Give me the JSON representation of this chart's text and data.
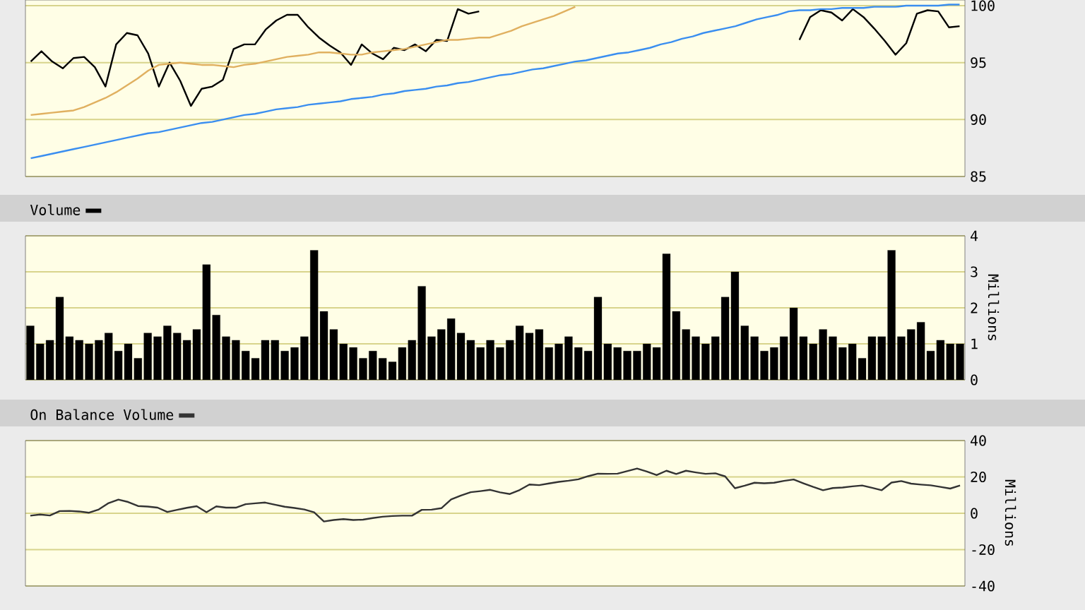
{
  "chart_data": [
    {
      "type": "line",
      "categories": [
        null,
        null,
        null,
        null,
        null,
        null,
        null,
        null,
        null,
        null,
        null,
        null,
        null,
        null,
        null,
        null,
        null,
        null,
        null,
        null,
        null,
        null,
        null,
        null,
        null,
        null,
        null,
        null,
        null,
        null,
        null,
        null,
        null,
        null,
        null,
        null,
        null,
        null,
        null,
        null,
        null,
        null,
        null,
        null,
        null,
        null,
        null,
        null,
        null,
        null,
        null,
        null,
        null,
        null,
        null,
        null,
        null,
        null,
        null,
        null,
        null,
        null,
        null,
        null,
        null,
        null,
        null,
        null,
        null,
        null,
        null,
        null,
        null,
        null,
        null,
        null,
        null,
        null,
        null,
        null,
        null,
        null,
        null,
        null,
        null,
        null,
        null,
        null
      ],
      "ylim": [
        85,
        100.5
      ],
      "yticks": [
        85,
        90,
        95,
        100
      ],
      "grid": "y",
      "tick_labels": "y",
      "series": [
        {
          "color": "#000000",
          "values": [
            95.1,
            96.0,
            95.1,
            94.5,
            95.4,
            95.5,
            94.6,
            92.9,
            96.6,
            97.6,
            97.4,
            95.8,
            92.9,
            95.0,
            93.4,
            91.2,
            92.7,
            92.9,
            93.5,
            96.2,
            96.6,
            96.6,
            97.9,
            98.7,
            99.2,
            99.2,
            98.1,
            97.2,
            96.5,
            95.9,
            94.8,
            96.6,
            95.8,
            95.3,
            96.3,
            96.1,
            96.6,
            96.0,
            97.0,
            96.9,
            99.7,
            99.3,
            99.5,
            null,
            null,
            null,
            null,
            null,
            null,
            null,
            null,
            null,
            null,
            null,
            null,
            null,
            null,
            null,
            null,
            null,
            null,
            null,
            null,
            null,
            null,
            null,
            null,
            null,
            null,
            null,
            null,
            null,
            97.0,
            99.0,
            99.6,
            99.4,
            98.7,
            99.7,
            99.0,
            98.0,
            96.9,
            95.7,
            96.7,
            99.3,
            99.6,
            99.5,
            98.1,
            98.2
          ]
        },
        {
          "color": "#e0b060",
          "values": [
            90.4,
            90.5,
            90.6,
            90.7,
            90.8,
            91.1,
            91.5,
            91.9,
            92.4,
            93.0,
            93.6,
            94.3,
            94.8,
            94.9,
            95.0,
            94.9,
            94.8,
            94.8,
            94.7,
            94.6,
            94.8,
            94.9,
            95.1,
            95.3,
            95.5,
            95.6,
            95.7,
            95.9,
            95.9,
            95.8,
            95.7,
            95.7,
            95.9,
            96.0,
            96.1,
            96.2,
            96.4,
            96.6,
            96.8,
            97.0,
            97.0,
            97.1,
            97.2,
            97.2,
            97.5,
            97.8,
            98.2,
            98.5,
            98.8,
            99.1,
            99.5,
            99.9,
            null,
            null,
            null,
            null,
            null,
            null,
            null,
            null,
            null,
            null,
            null,
            null,
            null,
            null,
            null,
            null,
            null,
            null,
            null,
            null,
            null,
            null,
            null,
            null,
            null,
            null,
            null,
            null,
            null,
            null,
            null,
            null,
            null,
            null,
            null,
            null
          ]
        },
        {
          "color": "#3a8ef0",
          "values": [
            86.6,
            86.8,
            87.0,
            87.2,
            87.4,
            87.6,
            87.8,
            88.0,
            88.2,
            88.4,
            88.6,
            88.8,
            88.9,
            89.1,
            89.3,
            89.5,
            89.7,
            89.8,
            90.0,
            90.2,
            90.4,
            90.5,
            90.7,
            90.9,
            91.0,
            91.1,
            91.3,
            91.4,
            91.5,
            91.6,
            91.8,
            91.9,
            92.0,
            92.2,
            92.3,
            92.5,
            92.6,
            92.7,
            92.9,
            93.0,
            93.2,
            93.3,
            93.5,
            93.7,
            93.9,
            94.0,
            94.2,
            94.4,
            94.5,
            94.7,
            94.9,
            95.1,
            95.2,
            95.4,
            95.6,
            95.8,
            95.9,
            96.1,
            96.3,
            96.6,
            96.8,
            97.1,
            97.3,
            97.6,
            97.8,
            98.0,
            98.2,
            98.5,
            98.8,
            99.0,
            99.2,
            99.5,
            99.6,
            99.6,
            99.7,
            99.7,
            99.8,
            99.8,
            99.8,
            99.9,
            99.9,
            99.9,
            100.0,
            100.0,
            100.0,
            100.0,
            100.1,
            100.1
          ]
        }
      ]
    },
    {
      "type": "bar",
      "ylabel": "Millions",
      "categories": [
        null,
        null,
        null,
        null,
        null,
        null,
        null,
        null,
        null,
        null,
        null,
        null,
        null,
        null,
        null,
        null,
        null,
        null,
        null,
        null,
        null,
        null,
        null,
        null,
        null,
        null,
        null,
        null,
        null,
        null,
        null,
        null,
        null,
        null,
        null,
        null,
        null,
        null,
        null,
        null,
        null,
        null,
        null,
        null,
        null,
        null,
        null,
        null,
        null,
        null,
        null,
        null,
        null,
        null,
        null,
        null,
        null,
        null,
        null,
        null,
        null,
        null,
        null,
        null,
        null,
        null,
        null,
        null,
        null,
        null,
        null,
        null,
        null,
        null,
        null,
        null,
        null,
        null,
        null,
        null,
        null,
        null,
        null,
        null,
        null,
        null,
        null,
        null,
        null,
        null,
        null,
        null,
        null,
        null,
        null,
        null
      ],
      "ylim": [
        0,
        4
      ],
      "yticks": [
        0,
        1,
        2,
        3,
        4
      ],
      "grid": "y",
      "tick_labels": "y",
      "legend": "top left",
      "series": [
        {
          "name": "Volume",
          "color": "#000000",
          "values": [
            1.5,
            1.0,
            1.1,
            2.3,
            1.2,
            1.1,
            1.0,
            1.1,
            1.3,
            0.8,
            1.0,
            0.6,
            1.3,
            1.2,
            1.5,
            1.3,
            1.1,
            1.4,
            3.2,
            1.8,
            1.2,
            1.1,
            0.8,
            0.6,
            1.1,
            1.1,
            0.8,
            0.9,
            1.2,
            3.6,
            1.9,
            1.4,
            1.0,
            0.9,
            0.6,
            0.8,
            0.6,
            0.5,
            0.9,
            1.1,
            2.6,
            1.2,
            1.4,
            1.7,
            1.3,
            1.1,
            0.9,
            1.1,
            0.9,
            1.1,
            1.5,
            1.3,
            1.4,
            0.9,
            1.0,
            1.2,
            0.9,
            0.8,
            2.3,
            1.0,
            0.9,
            0.8,
            0.8,
            1.0,
            0.9,
            3.5,
            1.9,
            1.4,
            1.2,
            1.0,
            1.2,
            2.3,
            3.0,
            1.5,
            1.2,
            0.8,
            0.9,
            1.2,
            2.0,
            1.2,
            1.0,
            1.4,
            1.2,
            0.9,
            1.0,
            0.6,
            1.2,
            1.2,
            3.6,
            1.2,
            1.4,
            1.6,
            0.8,
            1.1,
            1.0,
            1.0
          ]
        }
      ]
    },
    {
      "type": "line",
      "ylabel": "Millions",
      "categories": [
        null,
        null,
        null,
        null,
        null,
        null,
        null,
        null,
        null,
        null,
        null,
        null,
        null,
        null,
        null,
        null,
        null,
        null,
        null,
        null,
        null,
        null,
        null,
        null,
        null,
        null,
        null,
        null,
        null,
        null,
        null,
        null,
        null,
        null,
        null,
        null,
        null,
        null,
        null,
        null,
        null,
        null,
        null,
        null,
        null,
        null,
        null,
        null,
        null,
        null,
        null,
        null,
        null,
        null,
        null,
        null,
        null,
        null,
        null,
        null,
        null,
        null,
        null,
        null,
        null,
        null,
        null,
        null,
        null,
        null,
        null,
        null,
        null,
        null,
        null,
        null,
        null,
        null,
        null,
        null,
        null,
        null,
        null,
        null,
        null,
        null,
        null,
        null,
        null,
        null,
        null,
        null,
        null,
        null,
        null,
        null
      ],
      "ylim": [
        -40,
        40
      ],
      "yticks": [
        -40,
        -20,
        0,
        20,
        40
      ],
      "grid": "y",
      "tick_labels": "y",
      "legend": "top left",
      "series": [
        {
          "name": "On Balance Volume",
          "color": "#333333",
          "values": [
            -1.3,
            -0.7,
            -1.2,
            1.2,
            1.3,
            1.0,
            0.3,
            2.1,
            5.6,
            7.5,
            6.2,
            4.0,
            3.7,
            3.1,
            0.7,
            1.9,
            3.0,
            3.9,
            0.6,
            3.8,
            3.1,
            3.1,
            5.0,
            5.5,
            5.9,
            4.7,
            3.6,
            2.9,
            2.1,
            0.5,
            -4.5,
            -3.7,
            -3.2,
            -3.7,
            -3.5,
            -2.6,
            -1.9,
            -1.5,
            -1.3,
            -1.3,
            1.9,
            2.0,
            2.8,
            7.6,
            9.8,
            11.6,
            12.2,
            12.9,
            11.5,
            10.6,
            12.8,
            15.8,
            15.5,
            16.4,
            17.3,
            17.9,
            18.7,
            20.4,
            21.8,
            21.7,
            21.8,
            23.2,
            24.6,
            23.0,
            21.0,
            23.4,
            21.6,
            23.4,
            22.5,
            21.7,
            22.0,
            20.3,
            13.8,
            15.2,
            16.8,
            16.5,
            16.8,
            17.8,
            18.6,
            16.5,
            14.5,
            12.7,
            13.9,
            14.2,
            14.8,
            15.3,
            14.0,
            12.7,
            16.9,
            17.7,
            16.3,
            15.8,
            15.4,
            14.5,
            13.6,
            15.3
          ]
        }
      ]
    }
  ]
}
